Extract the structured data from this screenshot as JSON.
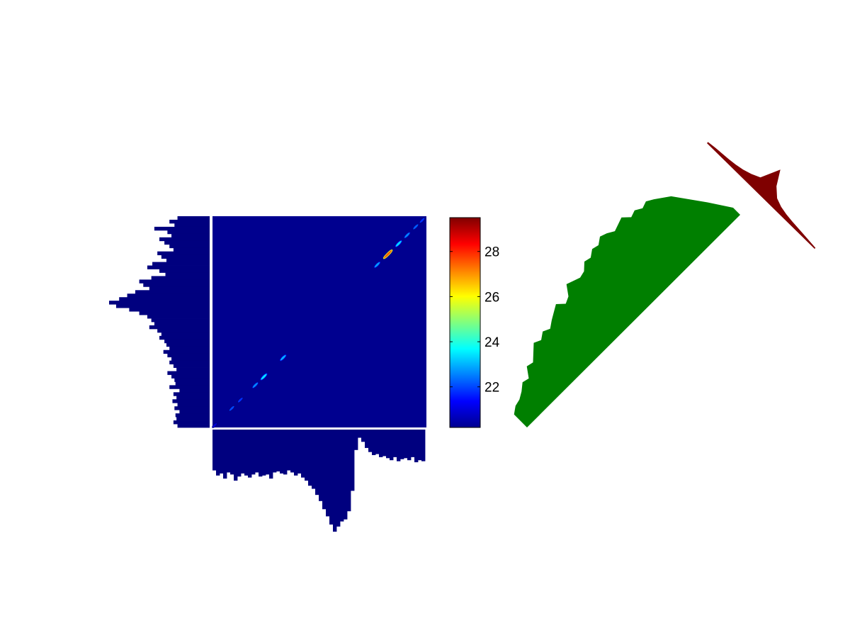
{
  "chart_data": [
    {
      "type": "heatmap",
      "title": "",
      "xlabel": "",
      "ylabel": "",
      "grid": false,
      "background_value": 20.2,
      "colormap": "jet",
      "colorbar": {
        "range": [
          20.2,
          29.5
        ],
        "ticks": [
          22,
          24,
          26,
          28
        ],
        "tick_labels": [
          "22",
          "24",
          "26",
          "28"
        ]
      },
      "diagonal_features": [
        {
          "position": 0.01,
          "value": 21.0
        },
        {
          "position": 0.09,
          "value": 22.0
        },
        {
          "position": 0.13,
          "value": 21.8
        },
        {
          "position": 0.2,
          "value": 22.6
        },
        {
          "position": 0.24,
          "value": 23.5
        },
        {
          "position": 0.33,
          "value": 23.0
        },
        {
          "position": 0.77,
          "value": 22.8
        },
        {
          "position": 0.82,
          "value": 27.5
        },
        {
          "position": 0.87,
          "value": 23.4
        },
        {
          "position": 0.91,
          "value": 22.6
        },
        {
          "position": 0.95,
          "value": 22.2
        },
        {
          "position": 0.98,
          "value": 21.8
        }
      ]
    },
    {
      "type": "bar",
      "role": "left marginal profile",
      "color": "#00007f",
      "values": [
        0.32,
        0.4,
        0.35,
        0.55,
        0.42,
        0.38,
        0.5,
        0.45,
        0.4,
        0.36,
        0.52,
        0.48,
        0.43,
        0.57,
        0.62,
        0.5,
        0.44,
        0.58,
        0.7,
        0.66,
        0.6,
        0.74,
        0.82,
        0.9,
        1.0,
        0.93,
        0.8,
        0.7,
        0.62,
        0.58,
        0.55,
        0.6,
        0.52,
        0.48,
        0.5,
        0.45,
        0.43,
        0.4,
        0.46,
        0.42,
        0.38,
        0.4,
        0.36,
        0.33,
        0.42,
        0.38,
        0.35,
        0.34,
        0.4,
        0.3,
        0.36,
        0.33,
        0.37,
        0.32,
        0.35,
        0.3,
        0.34,
        0.33,
        0.36,
        0.32
      ]
    },
    {
      "type": "bar",
      "role": "bottom marginal profile",
      "color": "#00007f",
      "values": [
        0.4,
        0.45,
        0.43,
        0.48,
        0.42,
        0.44,
        0.5,
        0.46,
        0.43,
        0.45,
        0.47,
        0.44,
        0.42,
        0.46,
        0.45,
        0.44,
        0.48,
        0.42,
        0.41,
        0.43,
        0.44,
        0.4,
        0.42,
        0.45,
        0.43,
        0.47,
        0.5,
        0.55,
        0.58,
        0.64,
        0.7,
        0.78,
        0.85,
        0.93,
        1.0,
        0.95,
        0.9,
        0.88,
        0.8,
        0.6,
        0.2,
        0.08,
        0.12,
        0.18,
        0.22,
        0.25,
        0.24,
        0.27,
        0.26,
        0.28,
        0.3,
        0.27,
        0.31,
        0.29,
        0.28,
        0.3,
        0.27,
        0.32,
        0.3,
        0.31
      ]
    },
    {
      "type": "area",
      "role": "diagonal profile",
      "color": "#007f00",
      "values": [
        0.22,
        0.28,
        0.3,
        0.35,
        0.42,
        0.4,
        0.52,
        0.5,
        0.58,
        0.66,
        0.62,
        0.68,
        0.64,
        0.7,
        0.75,
        0.8,
        0.72,
        0.76,
        0.88,
        0.85,
        0.82,
        0.84,
        0.92,
        0.9,
        0.96,
        0.94,
        1.0,
        0.97,
        0.92,
        0.95,
        0.98,
        0.9,
        0.93,
        0.88,
        0.91,
        0.86,
        0.8,
        0.74,
        0.62,
        0.5,
        0.38,
        0.25,
        0.12
      ]
    },
    {
      "type": "area",
      "role": "anti-diagonal profile",
      "color": "#7f0000",
      "values": [
        0.05,
        0.08,
        0.1,
        0.12,
        0.15,
        0.2,
        0.28,
        0.4,
        1.0,
        0.55,
        0.3,
        0.2,
        0.15,
        0.12,
        0.1,
        0.08,
        0.06,
        0.04
      ]
    }
  ]
}
